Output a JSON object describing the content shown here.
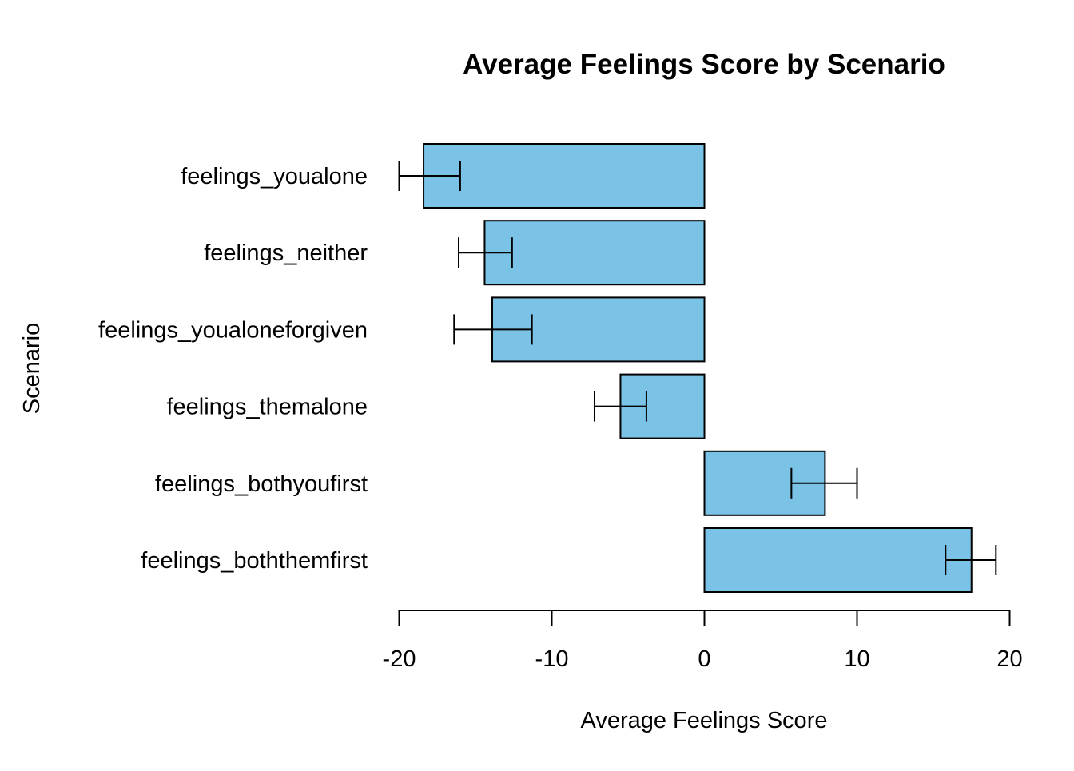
{
  "chart_data": {
    "type": "bar",
    "orientation": "horizontal",
    "title": "Average Feelings Score by Scenario",
    "xlabel": "Average Feelings Score",
    "ylabel": "Scenario",
    "xlim": [
      -20,
      20
    ],
    "x_ticks": [
      -20,
      -10,
      0,
      10,
      20
    ],
    "x_tick_labels": [
      "-20",
      "-10",
      "0",
      "10",
      "20"
    ],
    "grid": false,
    "legend": "none",
    "bar_color": "#7AC3E6",
    "bar_edge_color": "#000000",
    "categories": [
      "feelings_youalone",
      "feelings_neither",
      "feelings_youaloneforgiven",
      "feelings_themalone",
      "feelings_bothyoufirst",
      "feelings_boththemfirst"
    ],
    "values": [
      -18.4,
      -14.4,
      -13.9,
      -5.5,
      7.9,
      17.5
    ],
    "error_low": [
      -20.0,
      -16.1,
      -16.4,
      -7.2,
      5.7,
      15.8
    ],
    "error_high": [
      -16.0,
      -12.6,
      -11.3,
      -3.8,
      10.0,
      19.1
    ]
  }
}
